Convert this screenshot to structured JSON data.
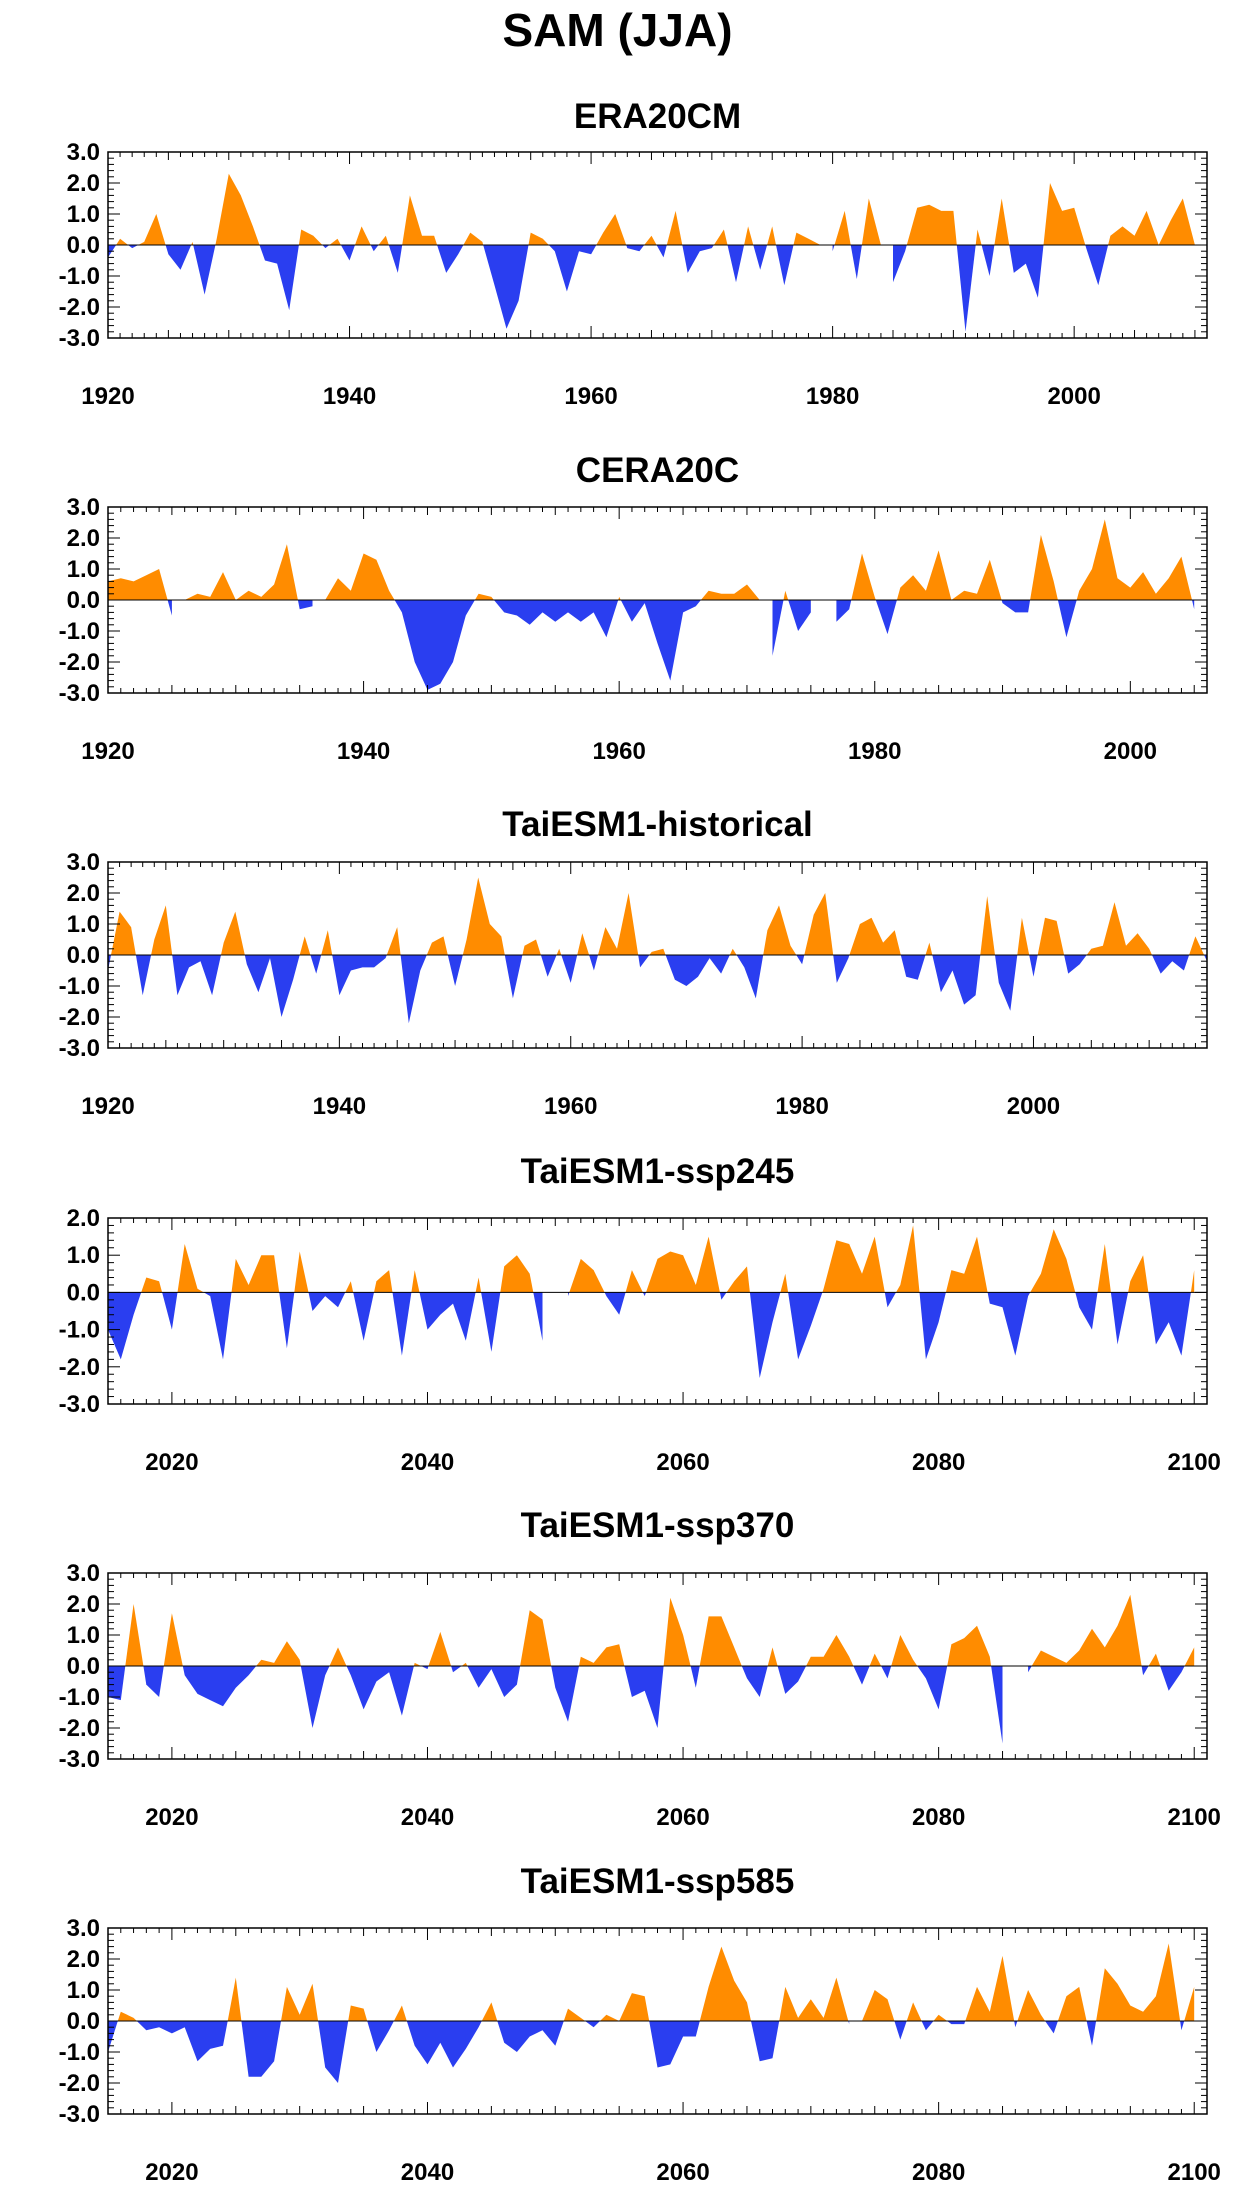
{
  "title": "SAM (JJA)",
  "colors": {
    "positive": "#ff8c00",
    "negative": "#2a3ef0",
    "axis": "#000000",
    "background": "#ffffff"
  },
  "chart_data": [
    {
      "type": "area",
      "title": "ERA20CM",
      "xlim": [
        1920,
        2011
      ],
      "ylim": [
        -3.0,
        3.0
      ],
      "xticks": [
        1920,
        1940,
        1960,
        1980,
        2000
      ],
      "yticks": [
        "3.0",
        "2.0",
        "1.0",
        "0.0",
        "-1.0",
        "-2.0",
        "-3.0"
      ],
      "x_start": 1920,
      "values": [
        -0.4,
        0.2,
        -0.1,
        0.1,
        1.0,
        -0.3,
        -0.8,
        0.1,
        -1.6,
        0.2,
        2.3,
        1.6,
        0.6,
        -0.5,
        -0.6,
        -2.1,
        0.5,
        0.3,
        -0.1,
        0.2,
        -0.5,
        0.6,
        -0.2,
        0.3,
        -0.9,
        1.6,
        0.3,
        0.3,
        -0.9,
        -0.3,
        0.4,
        0.1,
        -1.3,
        -2.7,
        -1.8,
        0.4,
        0.2,
        -0.2,
        -1.5,
        -0.2,
        -0.3,
        0.4,
        1.0,
        -0.1,
        -0.2,
        0.3,
        -0.4,
        1.1,
        -0.9,
        -0.2,
        -0.1,
        0.5,
        -1.2,
        0.6,
        -0.8,
        0.6,
        -1.3,
        0.4,
        0.2,
        0.0,
        -0.2,
        1.1,
        -1.1,
        1.5,
        0.0,
        -1.2,
        -0.2,
        1.2,
        1.3,
        1.1,
        1.1,
        -2.8,
        0.5,
        -1.0,
        1.5,
        -0.9,
        -0.6,
        -1.7,
        2.0,
        1.1,
        1.2,
        -0.1,
        -1.3,
        0.3,
        0.6,
        0.3,
        1.1,
        0.0,
        0.8,
        1.5,
        0.0
      ]
    },
    {
      "type": "area",
      "title": "CERA20C",
      "xlim": [
        1920,
        2006
      ],
      "ylim": [
        -3.0,
        3.0
      ],
      "xticks": [
        1920,
        1940,
        1960,
        1980,
        2000
      ],
      "yticks": [
        "3.0",
        "2.0",
        "1.0",
        "0.0",
        "-1.0",
        "-2.0",
        "-3.0"
      ],
      "x_start": 1920,
      "values": [
        0.6,
        0.7,
        0.6,
        0.8,
        1.0,
        -0.5,
        0.0,
        0.2,
        0.1,
        0.9,
        0.0,
        0.3,
        0.1,
        0.5,
        1.8,
        -0.3,
        -0.2,
        0.0,
        0.7,
        0.3,
        1.5,
        1.3,
        0.3,
        -0.4,
        -2.0,
        -2.9,
        -2.7,
        -2.0,
        -0.5,
        0.2,
        0.1,
        -0.4,
        -0.5,
        -0.8,
        -0.4,
        -0.7,
        -0.4,
        -0.7,
        -0.4,
        -1.2,
        0.1,
        -0.7,
        -0.1,
        -1.4,
        -2.6,
        -0.4,
        -0.2,
        0.3,
        0.2,
        0.2,
        0.5,
        0.0,
        -1.8,
        0.3,
        -1.0,
        -0.4,
        0.0,
        -0.7,
        -0.3,
        1.5,
        0.1,
        -1.1,
        0.4,
        0.8,
        0.3,
        1.6,
        0.0,
        0.3,
        0.2,
        1.3,
        -0.1,
        -0.4,
        -0.4,
        2.1,
        0.6,
        -1.2,
        0.3,
        1.0,
        2.6,
        0.7,
        0.4,
        0.9,
        0.2,
        0.7,
        1.4,
        -0.3
      ]
    },
    {
      "type": "area",
      "title": "TaiESM1-historical",
      "xlim": [
        1920,
        2015
      ],
      "ylim": [
        -3.0,
        3.0
      ],
      "xticks": [
        1920,
        1940,
        1960,
        1980,
        2000
      ],
      "yticks": [
        "3.0",
        "2.0",
        "1.0",
        "0.0",
        "-1.0",
        "-2.0",
        "-3.0"
      ],
      "x_start": 1920,
      "values": [
        -0.5,
        1.4,
        0.9,
        -1.3,
        0.5,
        1.6,
        -1.3,
        -0.4,
        -0.2,
        -1.3,
        0.4,
        1.4,
        -0.3,
        -1.2,
        -0.1,
        -2.0,
        -0.8,
        0.6,
        -0.6,
        0.8,
        -1.3,
        -0.5,
        -0.4,
        -0.4,
        -0.1,
        0.9,
        -2.2,
        -0.5,
        0.4,
        0.6,
        -1.0,
        0.5,
        2.5,
        1.0,
        0.6,
        -1.4,
        0.3,
        0.5,
        -0.7,
        0.2,
        -0.9,
        0.7,
        -0.5,
        0.9,
        0.2,
        2.0,
        -0.4,
        0.1,
        0.2,
        -0.8,
        -1.0,
        -0.7,
        -0.1,
        -0.6,
        0.2,
        -0.4,
        -1.4,
        0.8,
        1.6,
        0.3,
        -0.3,
        1.3,
        2.0,
        -0.9,
        -0.1,
        1.0,
        1.2,
        0.4,
        0.8,
        -0.7,
        -0.8,
        0.4,
        -1.2,
        -0.5,
        -1.6,
        -1.3,
        1.9,
        -0.9,
        -1.8,
        1.2,
        -0.7,
        1.2,
        1.1,
        -0.6,
        -0.3,
        0.2,
        0.3,
        1.7,
        0.3,
        0.7,
        0.2,
        -0.6,
        -0.2,
        -0.5,
        0.6,
        -0.2
      ]
    },
    {
      "type": "area",
      "title": "TaiESM1-ssp245",
      "xlim": [
        2015,
        2101
      ],
      "ylim": [
        -3.0,
        2.0
      ],
      "xticks": [
        2020,
        2040,
        2060,
        2080,
        2100
      ],
      "yticks": [
        "2.0",
        "1.0",
        "0.0",
        "-1.0",
        "-2.0",
        "-3.0"
      ],
      "x_start": 2015,
      "values": [
        -1.0,
        -1.8,
        -0.6,
        0.4,
        0.3,
        -1.0,
        1.3,
        0.1,
        -0.1,
        -1.8,
        0.9,
        0.2,
        1.0,
        1.0,
        -1.5,
        1.1,
        -0.5,
        -0.1,
        -0.4,
        0.3,
        -1.3,
        0.3,
        0.6,
        -1.7,
        0.6,
        -1.0,
        -0.6,
        -0.3,
        -1.3,
        0.4,
        -1.6,
        0.7,
        1.0,
        0.5,
        -1.3,
        0.0,
        -0.1,
        0.9,
        0.6,
        -0.1,
        -0.6,
        0.6,
        -0.1,
        0.9,
        1.1,
        1.0,
        0.2,
        1.5,
        -0.2,
        0.3,
        0.7,
        -2.3,
        -0.8,
        0.5,
        -1.8,
        -0.9,
        0.1,
        1.4,
        1.3,
        0.5,
        1.5,
        -0.4,
        0.2,
        1.8,
        -1.8,
        -0.8,
        0.6,
        0.5,
        1.5,
        -0.3,
        -0.4,
        -1.7,
        -0.1,
        0.5,
        1.7,
        0.9,
        -0.4,
        -1.0,
        1.3,
        -1.4,
        0.3,
        1.0,
        -1.4,
        -0.8,
        -1.7,
        0.6
      ]
    },
    {
      "type": "area",
      "title": "TaiESM1-ssp370",
      "xlim": [
        2015,
        2101
      ],
      "ylim": [
        -3.0,
        3.0
      ],
      "xticks": [
        2020,
        2040,
        2060,
        2080,
        2100
      ],
      "yticks": [
        "3.0",
        "2.0",
        "1.0",
        "0.0",
        "-1.0",
        "-2.0",
        "-3.0"
      ],
      "x_start": 2015,
      "values": [
        -1.0,
        -1.1,
        2.0,
        -0.6,
        -1.0,
        1.7,
        -0.3,
        -0.9,
        -1.1,
        -1.3,
        -0.7,
        -0.3,
        0.2,
        0.1,
        0.8,
        0.2,
        -2.0,
        -0.3,
        0.6,
        -0.3,
        -1.4,
        -0.5,
        -0.2,
        -1.6,
        0.1,
        -0.1,
        1.1,
        -0.2,
        0.1,
        -0.7,
        -0.1,
        -1.0,
        -0.6,
        1.8,
        1.5,
        -0.7,
        -1.8,
        0.3,
        0.1,
        0.6,
        0.7,
        -1.0,
        -0.8,
        -2.0,
        2.2,
        1.0,
        -0.7,
        1.6,
        1.6,
        0.6,
        -0.4,
        -1.0,
        0.6,
        -0.9,
        -0.5,
        0.3,
        0.3,
        1.0,
        0.3,
        -0.6,
        0.4,
        -0.4,
        1.0,
        0.2,
        -0.4,
        -1.4,
        0.7,
        0.9,
        1.3,
        0.3,
        -2.5,
        0.0,
        -0.2,
        0.5,
        0.3,
        0.1,
        0.5,
        1.2,
        0.6,
        1.3,
        2.3,
        -0.3,
        0.4,
        -0.8,
        -0.2,
        0.6
      ]
    },
    {
      "type": "area",
      "title": "TaiESM1-ssp585",
      "xlim": [
        2015,
        2101
      ],
      "ylim": [
        -3.0,
        3.0
      ],
      "xticks": [
        2020,
        2040,
        2060,
        2080,
        2100
      ],
      "yticks": [
        "3.0",
        "2.0",
        "1.0",
        "0.0",
        "-1.0",
        "-2.0",
        "-3.0"
      ],
      "x_start": 2015,
      "values": [
        -1.0,
        0.3,
        0.1,
        -0.3,
        -0.2,
        -0.4,
        -0.2,
        -1.3,
        -0.9,
        -0.8,
        1.4,
        -1.8,
        -1.8,
        -1.3,
        1.1,
        0.2,
        1.2,
        -1.5,
        -2.0,
        0.5,
        0.4,
        -1.0,
        -0.3,
        0.5,
        -0.8,
        -1.4,
        -0.7,
        -1.5,
        -0.9,
        -0.2,
        0.6,
        -0.7,
        -1.0,
        -0.5,
        -0.3,
        -0.8,
        0.4,
        0.1,
        -0.2,
        0.2,
        0.0,
        0.9,
        0.8,
        -1.5,
        -1.4,
        -0.5,
        -0.5,
        1.1,
        2.4,
        1.3,
        0.6,
        -1.3,
        -1.2,
        1.1,
        0.1,
        0.7,
        0.1,
        1.4,
        -0.1,
        0.0,
        1.0,
        0.7,
        -0.6,
        0.6,
        -0.3,
        0.2,
        -0.1,
        -0.1,
        1.1,
        0.3,
        2.1,
        -0.2,
        1.0,
        0.2,
        -0.4,
        0.8,
        1.1,
        -0.8,
        1.7,
        1.2,
        0.5,
        0.3,
        0.8,
        2.5,
        -0.3,
        1.1
      ]
    }
  ]
}
